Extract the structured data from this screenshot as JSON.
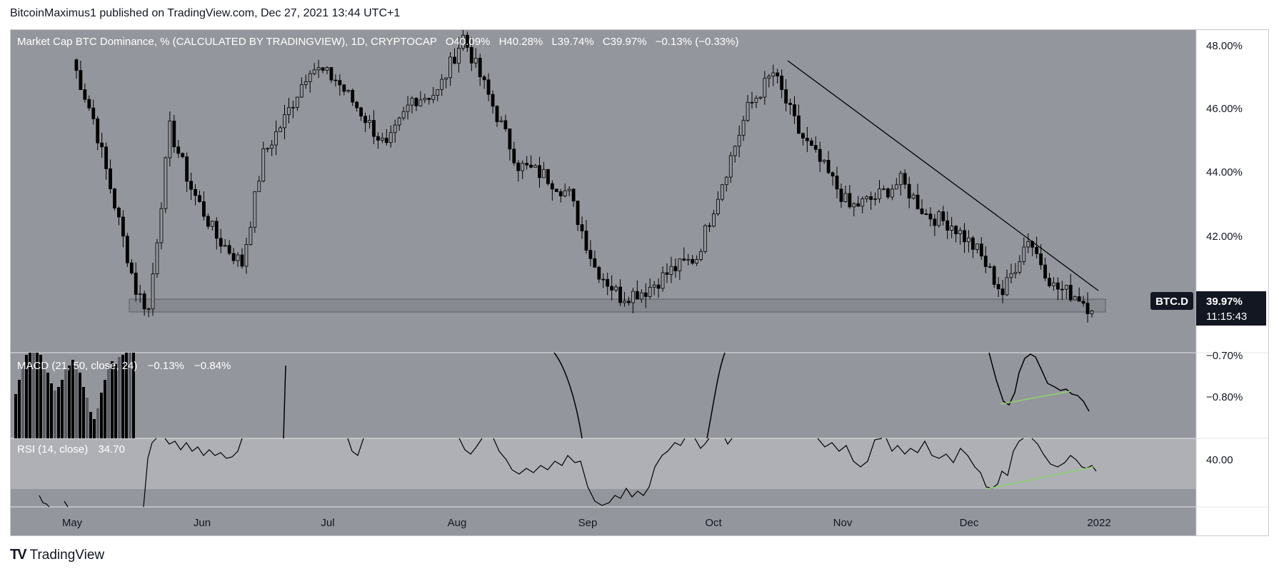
{
  "header": {
    "text": "BitcoinMaximus1 published on TradingView.com, Dec 27, 2021 13:44 UTC+1"
  },
  "footer": {
    "logo": "TV",
    "brand": "TradingView"
  },
  "colors": {
    "main_bg": "#94969d",
    "rsi_band": "#aeb0b5",
    "scale_bg": "#ffffff",
    "candle": "#000000",
    "trend_line": "#000000",
    "divergence": "#8bd46b",
    "support_zone": "#7c7f86",
    "price_tag": "#131722"
  },
  "main": {
    "legend": {
      "title": "Market Cap BTC Dominance, % (CALCULATED BY TRADINGVIEW), 1D, CRYPTOCAP",
      "o": "O40.09%",
      "h": "H40.28%",
      "l": "L39.74%",
      "c": "C39.97%",
      "chg": "−0.13% (−0.33%)"
    },
    "price_axis": [
      "48.00%",
      "46.00%",
      "44.00%",
      "42.00%"
    ],
    "symbol": "BTC.D",
    "last_price": "39.97%",
    "countdown": "11:15:43"
  },
  "macd": {
    "legend": "MACD (21, 50, close, 24)",
    "v1": "−0.13%",
    "v2": "−0.84%",
    "axis": [
      "−0.70%",
      "−0.80%"
    ]
  },
  "rsi": {
    "legend": "RSI (14, close)",
    "value": "34.70",
    "axis": [
      "40.00"
    ]
  },
  "time_axis": [
    "May",
    "Jun",
    "Jul",
    "Aug",
    "Sep",
    "Oct",
    "Nov",
    "Dec",
    "2022"
  ],
  "chart_data": {
    "type": "candlestick",
    "title": "Market Cap BTC Dominance, % (CALCULATED BY TRADINGVIEW), 1D, CRYPTOCAP",
    "ylim": [
      38.7,
      48.5
    ],
    "x": [
      "2021-05-01",
      "2021-05-06",
      "2021-05-11",
      "2021-05-16",
      "2021-05-19",
      "2021-05-24",
      "2021-05-29",
      "2021-06-04",
      "2021-06-10",
      "2021-06-15",
      "2021-06-20",
      "2021-06-26",
      "2021-07-02",
      "2021-07-08",
      "2021-07-14",
      "2021-07-20",
      "2021-07-26",
      "2021-08-01",
      "2021-08-08",
      "2021-08-14",
      "2021-08-20",
      "2021-08-26",
      "2021-09-01",
      "2021-09-07",
      "2021-09-13",
      "2021-09-19",
      "2021-09-25",
      "2021-10-01",
      "2021-10-07",
      "2021-10-13",
      "2021-10-19",
      "2021-10-25",
      "2021-10-31",
      "2021-11-06",
      "2021-11-12",
      "2021-11-18",
      "2021-11-24",
      "2021-11-30",
      "2021-12-06",
      "2021-12-12",
      "2021-12-18",
      "2021-12-24",
      "2021-12-27"
    ],
    "close": [
      47.6,
      45.8,
      43.2,
      40.6,
      40.0,
      45.5,
      43.7,
      42.2,
      41.4,
      44.7,
      45.8,
      47.4,
      47.0,
      46.0,
      44.9,
      46.4,
      46.6,
      48.3,
      46.2,
      44.4,
      44.1,
      43.5,
      41.3,
      40.4,
      40.6,
      41.2,
      41.6,
      43.9,
      46.1,
      47.2,
      45.4,
      44.3,
      43.1,
      43.4,
      43.9,
      42.9,
      42.6,
      41.8,
      40.5,
      42.2,
      40.7,
      40.4,
      39.97
    ],
    "support_zone": [
      39.8,
      40.2
    ],
    "trendline": {
      "from": [
        "2021-10-20",
        47.5
      ],
      "to": [
        "2021-12-28",
        40.8
      ]
    },
    "indicators": {
      "macd": {
        "params": "21, 50, close, 24",
        "value": -0.13,
        "signal": -0.84,
        "ylim": [
          -0.86,
          -0.7
        ]
      },
      "rsi": {
        "params": "14, close",
        "value": 34.7,
        "ylim": [
          34,
          42
        ]
      }
    },
    "last": {
      "symbol": "BTC.D",
      "price": 39.97,
      "countdown": "11:15:43"
    }
  }
}
